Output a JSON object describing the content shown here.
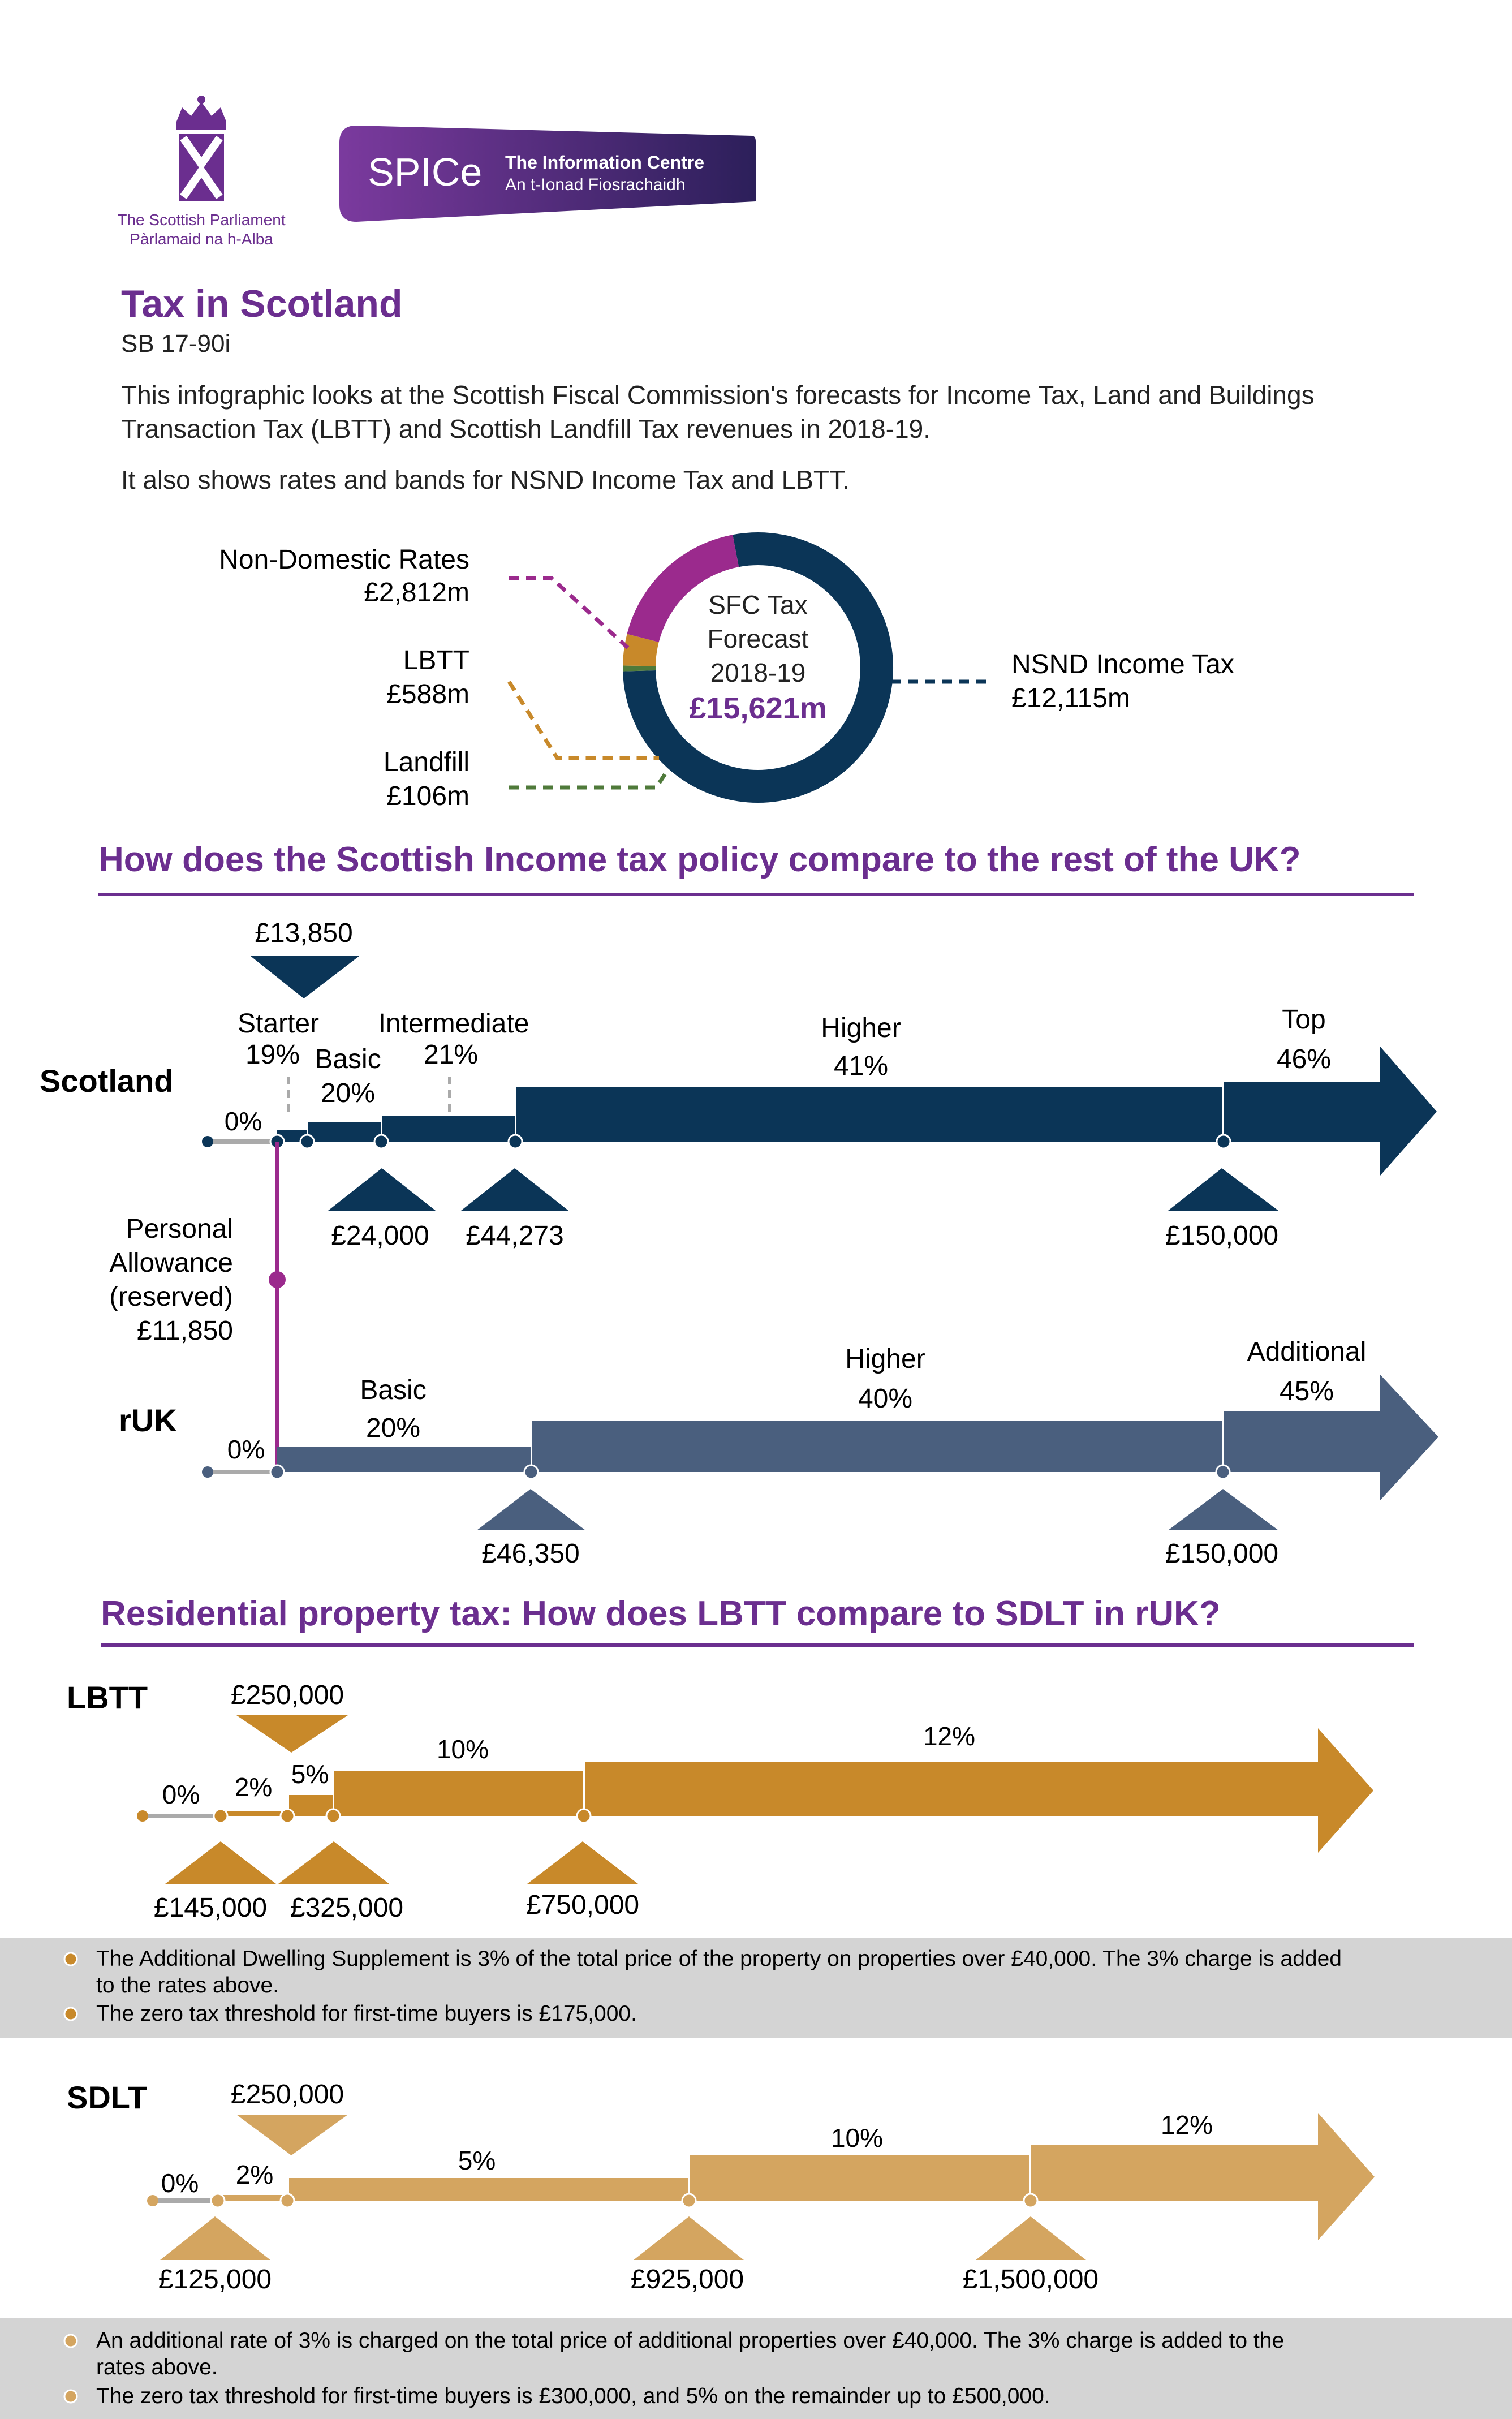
{
  "header": {
    "parliament_en": "The Scottish Parliament",
    "parliament_gd": "Pàrlamaid na h-Alba",
    "spice_logo": "SPICe",
    "spice_en": "The Information Centre",
    "spice_gd": "An t-Ionad Fiosrachaidh"
  },
  "title": "Tax in Scotland",
  "ref": "SB 17-90i",
  "intro": {
    "line1": "This infographic looks at the Scottish Fiscal Commission's forecasts for Income Tax, Land and Buildings",
    "line2": "Transaction Tax (LBTT) and Scottish Landfill Tax revenues in 2018-19.",
    "line3": "It also shows rates and bands for NSND Income Tax and LBTT."
  },
  "donut": {
    "center_l1": "SFC Tax",
    "center_l2": "Forecast",
    "center_l3": "2018-19",
    "center_total": "£15,621m",
    "segments": [
      {
        "name": "NSND Income Tax",
        "value": "£12,115m",
        "amount": 12115,
        "color": "#0b3557"
      },
      {
        "name": "Landfill",
        "value": "£106m",
        "amount": 106,
        "color": "#4f7a3a"
      },
      {
        "name": "LBTT",
        "value": "£588m",
        "amount": 588,
        "color": "#c8892a"
      },
      {
        "name": "Non-Domestic Rates",
        "value": "£2,812m",
        "amount": 2812,
        "color": "#9b2a8d"
      }
    ]
  },
  "income_section": {
    "heading": "How does the Scottish Income tax policy compare to the rest of the UK?",
    "scotland": {
      "label": "Scotland",
      "zero": "0%",
      "top_threshold": "£13,850",
      "bands": [
        {
          "name": "Starter",
          "rate": "19%"
        },
        {
          "name": "Basic",
          "rate": "20%"
        },
        {
          "name": "Intermediate",
          "rate": "21%"
        },
        {
          "name": "Higher",
          "rate": "41%"
        },
        {
          "name": "Top",
          "rate": "46%"
        }
      ],
      "thresholds": [
        "£24,000",
        "£44,273",
        "£150,000"
      ]
    },
    "personal_allowance": {
      "l1": "Personal",
      "l2": "Allowance",
      "l3": "(reserved)",
      "value": "£11,850"
    },
    "ruk": {
      "label": "rUK",
      "zero": "0%",
      "bands": [
        {
          "name": "Basic",
          "rate": "20%"
        },
        {
          "name": "Higher",
          "rate": "40%"
        },
        {
          "name": "Additional",
          "rate": "45%"
        }
      ],
      "thresholds": [
        "£46,350",
        "£150,000"
      ]
    }
  },
  "property_section": {
    "heading": "Residential property tax: How does LBTT compare to SDLT in rUK?",
    "lbtt": {
      "label": "LBTT",
      "rates": [
        "0%",
        "2%",
        "5%",
        "10%",
        "12%"
      ],
      "top_threshold": "£250,000",
      "thresholds": [
        "£145,000",
        "£325,000",
        "£750,000"
      ],
      "notes_l1": "The Additional Dwelling Supplement is 3% of the total price of the property on properties over £40,000. The 3% charge is added",
      "notes_l2": "to the rates above.",
      "notes_l3": "The zero tax threshold for first-time buyers is £175,000."
    },
    "sdlt": {
      "label": "SDLT",
      "rates": [
        "0%",
        "2%",
        "5%",
        "10%",
        "12%"
      ],
      "top_threshold": "£250,000",
      "thresholds": [
        "£125,000",
        "£925,000",
        "£1,500,000"
      ],
      "notes_l1": "An additional rate of 3% is charged on the total price of additional properties over £40,000. The 3% charge is added to the",
      "notes_l2": "rates above.",
      "notes_l3": "The zero tax threshold for first-time buyers is £300,000, and 5% on the remainder up to £500,000."
    }
  },
  "colors": {
    "purple": "#6b2e8f",
    "navy": "#0b3557",
    "slate": "#4a5f7e",
    "gold": "#c8892a",
    "tan": "#d4a560",
    "magenta": "#9b2a8d",
    "green": "#4f7a3a",
    "grey_box": "#d4d4d4"
  }
}
